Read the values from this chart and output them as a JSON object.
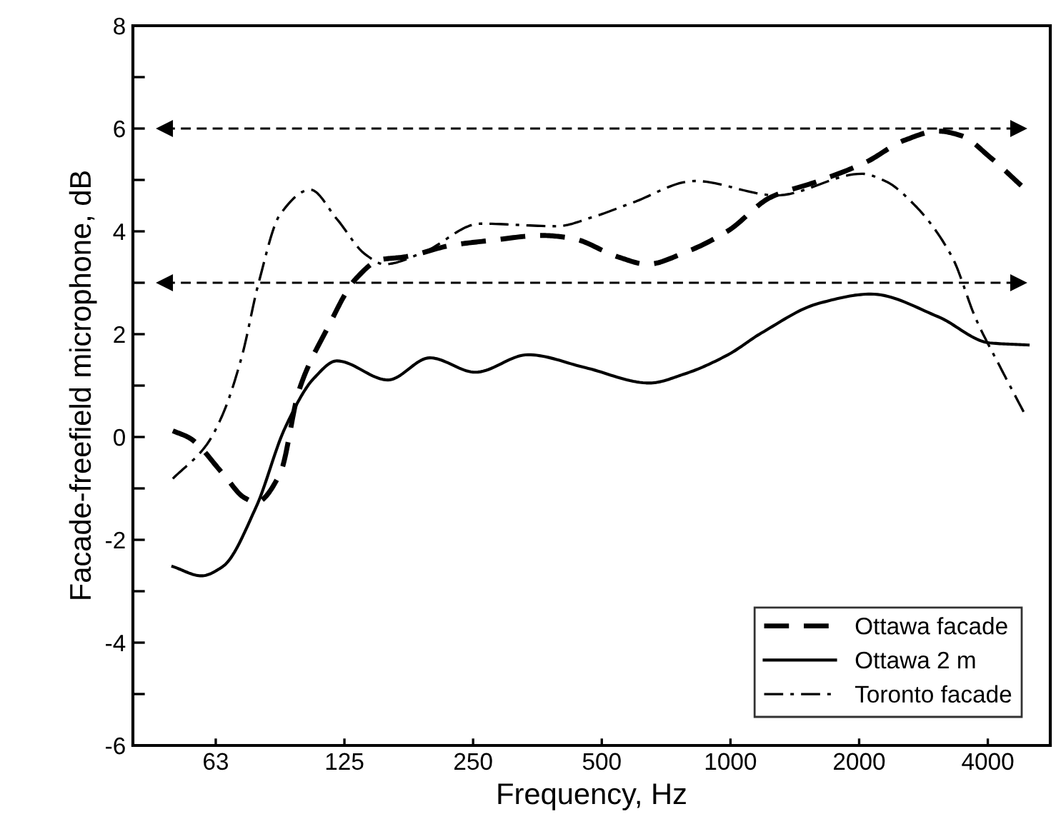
{
  "chart_data": {
    "type": "line",
    "xlabel": "Frequency, Hz",
    "ylabel": "Facade-freefield microphone, dB",
    "log": "x",
    "xlim": [
      40,
      5600
    ],
    "xticks": [
      {
        "value": 62.5,
        "label": "63"
      },
      125,
      250,
      500,
      1000,
      2000,
      4000
    ],
    "ylim": [
      -6,
      8
    ],
    "yticks": [
      -6,
      {
        "value": -5,
        "label": null
      },
      -4,
      {
        "value": -3,
        "label": null
      },
      -2,
      {
        "value": -1,
        "label": null
      },
      0,
      {
        "value": 1,
        "label": null
      },
      2,
      {
        "value": 3,
        "label": null
      },
      4,
      {
        "value": 5,
        "label": null
      },
      6,
      {
        "value": 7,
        "label": null
      },
      8
    ],
    "grid": false,
    "legend": "bottom right",
    "marker": "none",
    "series": [
      {
        "name": "Ottawa facade",
        "color": "#000000",
        "line_style": "dashed",
        "x": [
          49.6,
          54.3,
          64.9,
          72.9,
          77.7,
          88.4,
          97.9,
          114,
          133,
          152,
          172,
          223,
          273,
          363,
          423,
          547,
          638,
          783,
          987,
          1240,
          1610,
          2080,
          2550,
          3060,
          3470,
          4050,
          4790
        ],
        "values": [
          0.12,
          -0.02,
          -0.71,
          -1.18,
          -1.27,
          -0.71,
          0.91,
          2.11,
          3.08,
          3.45,
          3.5,
          3.73,
          3.82,
          3.92,
          3.87,
          3.5,
          3.36,
          3.59,
          4.01,
          4.66,
          4.98,
          5.35,
          5.77,
          5.95,
          5.86,
          5.44,
          4.89
        ]
      },
      {
        "name": "Ottawa 2 m",
        "color": "#000000",
        "line_style": "solid",
        "x": [
          49.6,
          57.9,
          64.9,
          77.7,
          90.7,
          106,
          120,
          158,
          198,
          253,
          336,
          457,
          646,
          783,
          987,
          1180,
          1610,
          2130,
          3060,
          4040,
          4970
        ],
        "values": [
          -2.52,
          -2.7,
          -2.52,
          -1.36,
          0.17,
          1.14,
          1.48,
          1.11,
          1.54,
          1.26,
          1.6,
          1.35,
          1.05,
          1.23,
          1.6,
          2.02,
          2.6,
          2.78,
          2.34,
          1.83,
          1.79
        ]
      },
      {
        "name": "Toronto facade",
        "color": "#000000",
        "line_style": "dashdot",
        "x": [
          49.6,
          59.4,
          64.9,
          71.9,
          78.7,
          88.4,
          104,
          120,
          140,
          155,
          191,
          260,
          392,
          481,
          591,
          825,
          1280,
          2030,
          2300,
          2690,
          3300,
          3750,
          4270,
          4850
        ],
        "values": [
          -0.81,
          -0.16,
          0.44,
          1.56,
          2.99,
          4.33,
          4.81,
          4.24,
          3.55,
          3.36,
          3.59,
          4.15,
          4.1,
          4.29,
          4.56,
          4.98,
          4.7,
          5.12,
          4.98,
          4.52,
          3.5,
          2.3,
          1.37,
          0.49
        ]
      }
    ],
    "ref_lines": [
      {
        "axis": "y",
        "value": 6,
        "line_style": "dashed",
        "color": "#000000"
      },
      {
        "axis": "y",
        "value": 3,
        "line_style": "dashed",
        "color": "#000000"
      }
    ]
  }
}
